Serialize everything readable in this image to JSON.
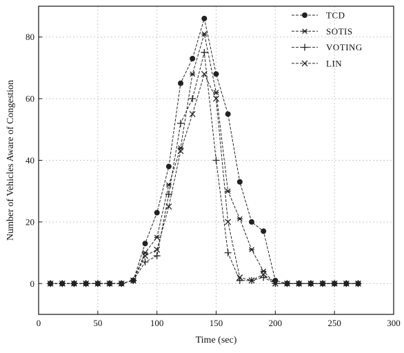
{
  "chart_data": {
    "type": "line",
    "title": "",
    "xlabel": "Time (sec)",
    "ylabel": "Number of Vehicles Aware of Congestion",
    "xlim": [
      0,
      300
    ],
    "ylim": [
      -10,
      90
    ],
    "xticks": [
      0,
      50,
      100,
      150,
      200,
      250,
      300
    ],
    "yticks": [
      0,
      20,
      40,
      60,
      80
    ],
    "grid": true,
    "legend_position": "top-right",
    "x": [
      10,
      20,
      30,
      40,
      50,
      60,
      70,
      80,
      90,
      100,
      110,
      120,
      130,
      140,
      150,
      160,
      170,
      180,
      190,
      200,
      210,
      220,
      230,
      240,
      250,
      260,
      270
    ],
    "series": [
      {
        "name": "TCD",
        "marker": "filled-circle",
        "values": [
          0,
          0,
          0,
          0,
          0,
          0,
          0,
          1,
          13,
          23,
          38,
          65,
          73,
          86,
          68,
          55,
          33,
          20,
          17,
          1,
          0,
          0,
          0,
          0,
          0,
          0,
          0
        ]
      },
      {
        "name": "SOTIS",
        "marker": "star",
        "values": [
          0,
          0,
          0,
          0,
          0,
          0,
          0,
          1,
          10,
          15,
          32,
          44,
          68,
          81,
          62,
          30,
          21,
          11,
          4,
          0,
          0,
          0,
          0,
          0,
          0,
          0,
          0
        ]
      },
      {
        "name": "VOTING",
        "marker": "plus",
        "values": [
          0,
          0,
          0,
          0,
          0,
          0,
          0,
          1,
          7,
          9,
          29,
          52,
          60,
          75,
          40,
          10,
          1,
          1,
          2,
          0,
          0,
          0,
          0,
          0,
          0,
          0,
          0
        ]
      },
      {
        "name": "LIN",
        "marker": "x",
        "values": [
          0,
          0,
          0,
          0,
          0,
          0,
          0,
          1,
          9,
          11,
          25,
          43,
          55,
          68,
          60,
          20,
          2,
          1,
          3,
          0,
          0,
          0,
          0,
          0,
          0,
          0,
          0
        ]
      }
    ],
    "colors": {
      "line": "#222222",
      "grid": "#c8c8c8",
      "frame": "#111111"
    }
  }
}
